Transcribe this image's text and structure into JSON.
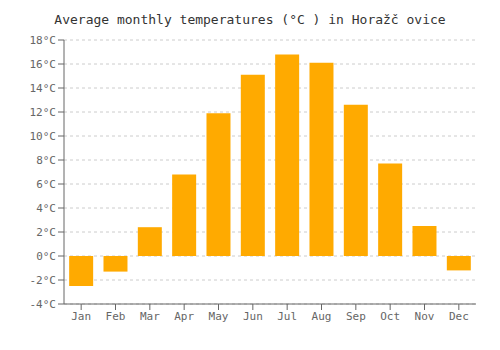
{
  "chart_data": {
    "type": "bar",
    "title": "Average monthly temperatures (°C ) in Horažč ovice",
    "categories": [
      "Jan",
      "Feb",
      "Mar",
      "Apr",
      "May",
      "Jun",
      "Jul",
      "Aug",
      "Sep",
      "Oct",
      "Nov",
      "Dec"
    ],
    "values": [
      -2.5,
      -1.3,
      2.4,
      6.8,
      11.9,
      15.1,
      16.8,
      16.1,
      12.6,
      7.7,
      2.5,
      -1.2
    ],
    "color": "#FFAA00",
    "ylim": [
      -4,
      18
    ],
    "yticks": [
      {
        "value": -4,
        "label": "-4°C"
      },
      {
        "value": -2,
        "label": "-2°C"
      },
      {
        "value": 0,
        "label": "0°C"
      },
      {
        "value": 2,
        "label": "2°C"
      },
      {
        "value": 4,
        "label": "4°C"
      },
      {
        "value": 6,
        "label": "6°C"
      },
      {
        "value": 8,
        "label": "8°C"
      },
      {
        "value": 10,
        "label": "10°C"
      },
      {
        "value": 12,
        "label": "12°C"
      },
      {
        "value": 14,
        "label": "14°C"
      },
      {
        "value": 16,
        "label": "16°C"
      },
      {
        "value": 18,
        "label": "18°C"
      }
    ],
    "grid": true
  }
}
